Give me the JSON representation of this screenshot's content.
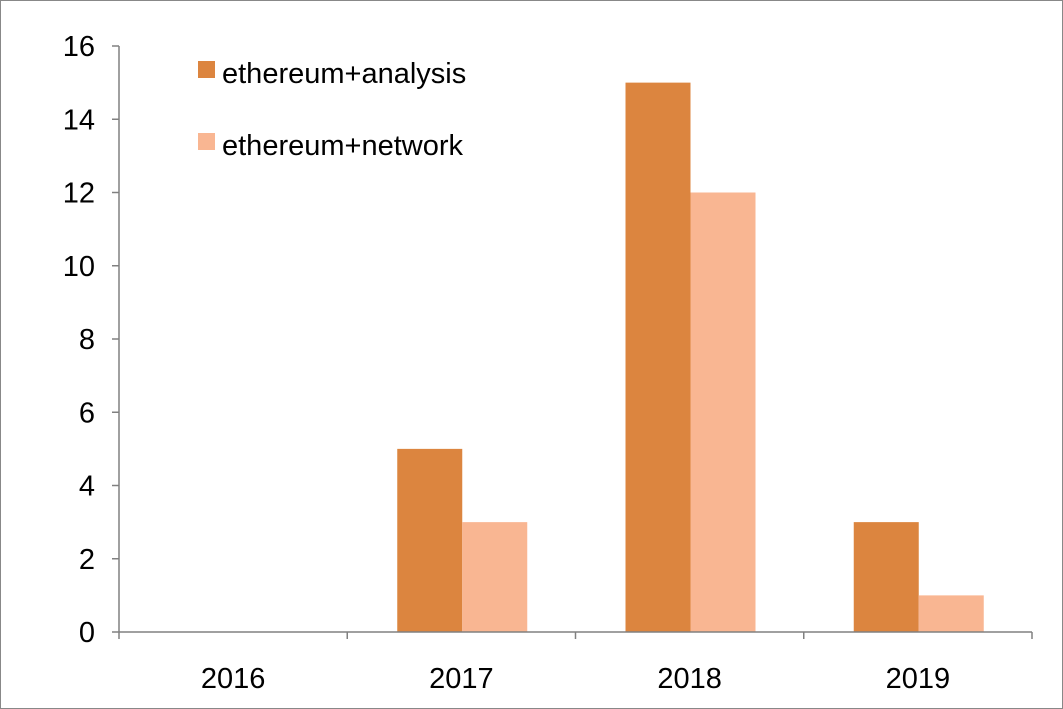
{
  "chart_data": {
    "type": "bar",
    "categories": [
      "2016",
      "2017",
      "2018",
      "2019"
    ],
    "series": [
      {
        "name": "ethereum+analysis",
        "color": "#DC853F",
        "values": [
          0,
          5,
          15,
          3
        ]
      },
      {
        "name": "ethereum+network",
        "color": "#F9B692",
        "values": [
          0,
          3,
          12,
          1
        ]
      }
    ],
    "yticks": [
      "0",
      "2",
      "4",
      "6",
      "8",
      "10",
      "12",
      "14",
      "16"
    ],
    "ylim": [
      0,
      16
    ],
    "title": "",
    "xlabel": "",
    "ylabel": "",
    "grid": false,
    "legend_position": "top-left",
    "axis_color": "#808080"
  }
}
